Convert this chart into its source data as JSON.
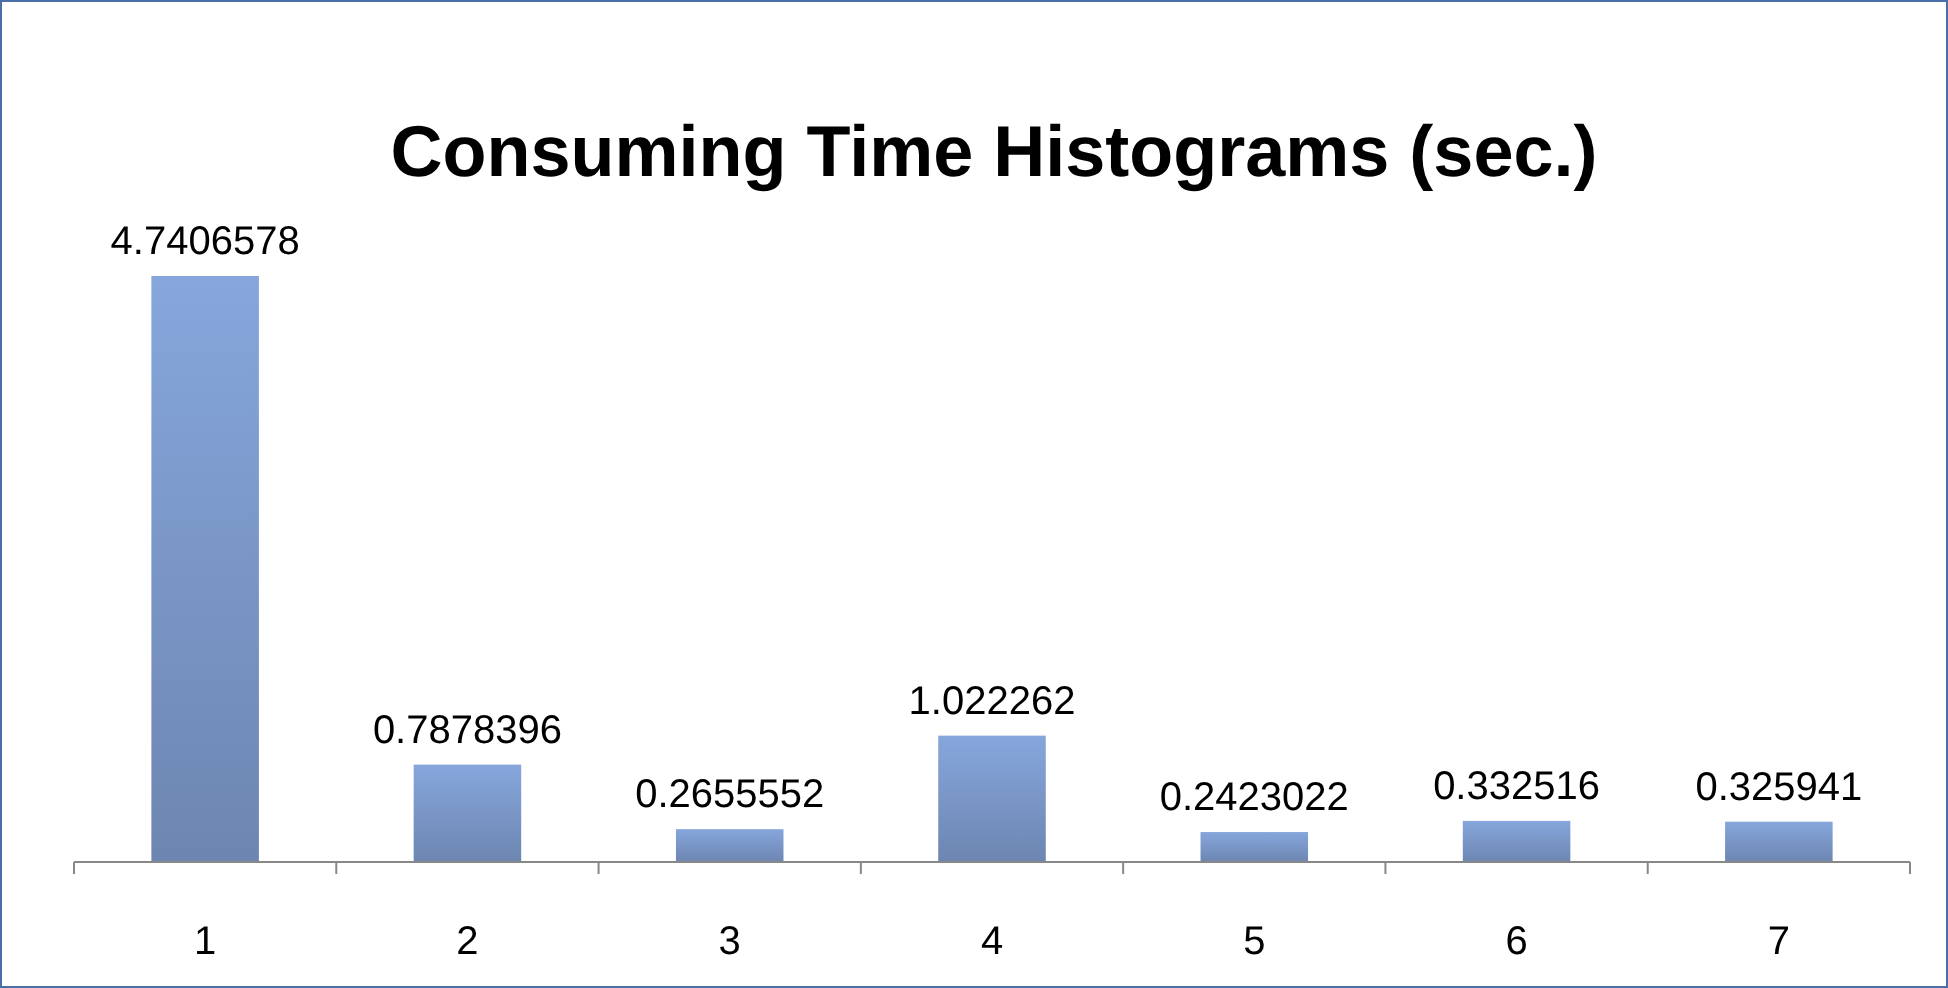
{
  "chart_data": {
    "type": "bar",
    "title": "Consuming Time Histograms (sec.)",
    "categories": [
      "1",
      "2",
      "3",
      "4",
      "5",
      "6",
      "7"
    ],
    "values": [
      4.7406578,
      0.7878396,
      0.2655552,
      1.022262,
      0.2423022,
      0.332516,
      0.325941
    ],
    "color": "#7b98c9",
    "data_labels": true
  }
}
